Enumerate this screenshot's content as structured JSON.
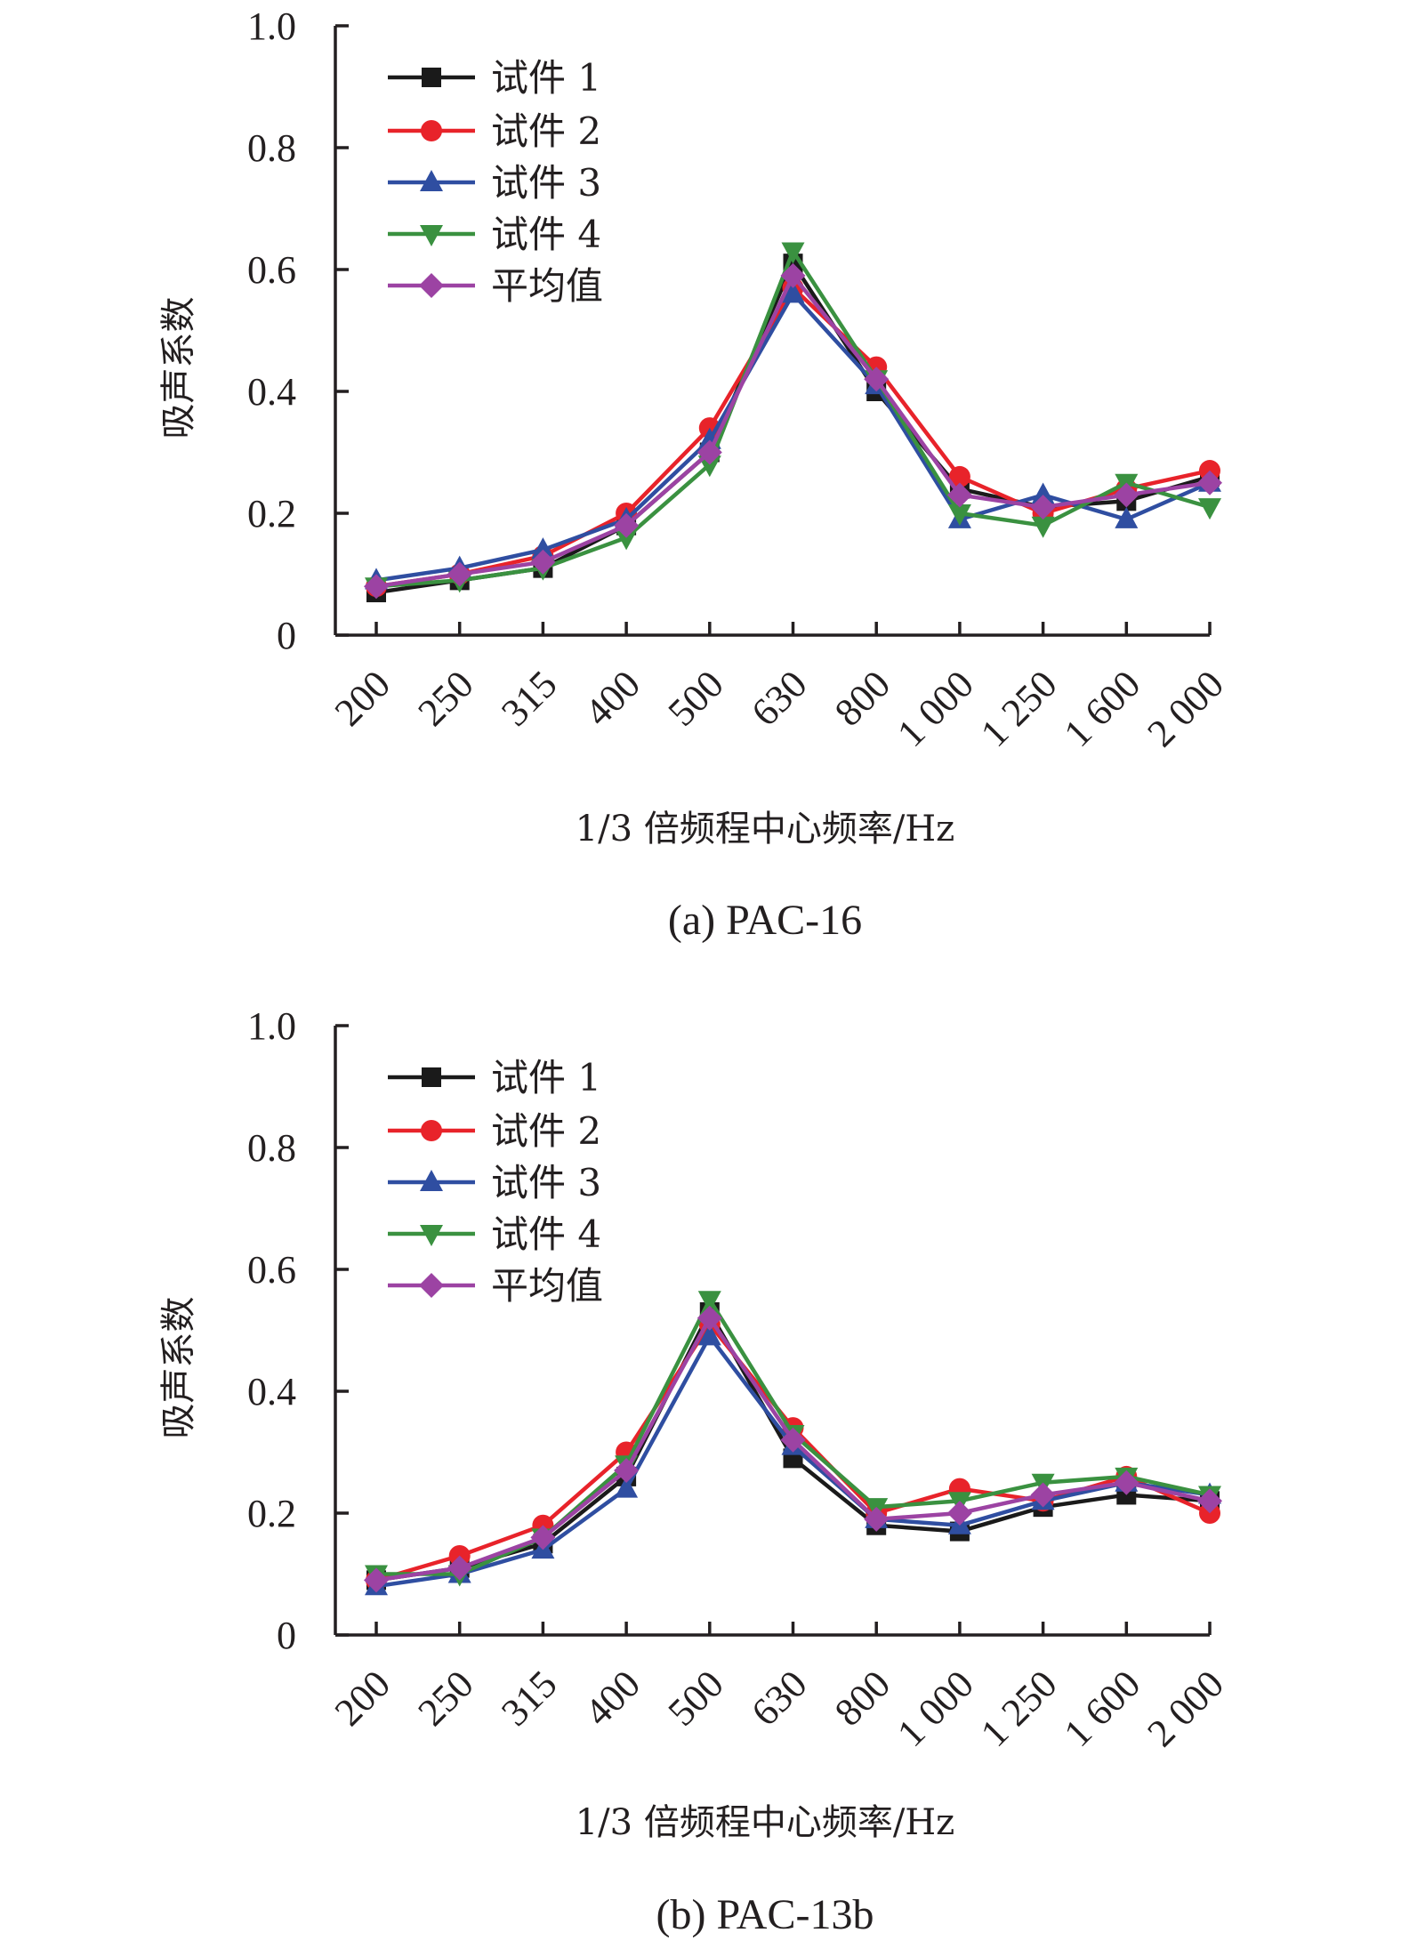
{
  "chart_data": [
    {
      "type": "line",
      "panel": "a",
      "title": "",
      "caption": "(a) PAC-16",
      "xlabel": "1/3 倍频程中心频率/Hz",
      "ylabel": "吸声系数",
      "categories": [
        "200",
        "250",
        "315",
        "400",
        "500",
        "630",
        "800",
        "1 000",
        "1 250",
        "1 600",
        "2 000"
      ],
      "ylim": [
        0,
        1.0
      ],
      "yticks": [
        "0",
        "0.2",
        "0.4",
        "0.6",
        "0.8",
        "1.0"
      ],
      "ytick_values": [
        0,
        0.2,
        0.4,
        0.6,
        0.8,
        1.0
      ],
      "grid": false,
      "legend_position": "top-left",
      "series": [
        {
          "name": "试件 1",
          "color": "#1a1a1a",
          "marker": "square",
          "values": [
            0.07,
            0.09,
            0.11,
            0.18,
            0.3,
            0.61,
            0.4,
            0.24,
            0.21,
            0.22,
            0.26
          ]
        },
        {
          "name": "试件 2",
          "color": "#e8232a",
          "marker": "circle",
          "values": [
            0.08,
            0.1,
            0.13,
            0.2,
            0.34,
            0.57,
            0.44,
            0.26,
            0.2,
            0.24,
            0.27
          ]
        },
        {
          "name": "试件 3",
          "color": "#2f4ea1",
          "marker": "triangle-up",
          "values": [
            0.09,
            0.11,
            0.14,
            0.19,
            0.32,
            0.56,
            0.41,
            0.19,
            0.23,
            0.19,
            0.25
          ]
        },
        {
          "name": "试件 4",
          "color": "#3a9140",
          "marker": "triangle-down",
          "values": [
            0.08,
            0.09,
            0.11,
            0.16,
            0.28,
            0.63,
            0.42,
            0.2,
            0.18,
            0.25,
            0.21
          ]
        },
        {
          "name": "平均值",
          "color": "#9c43a3",
          "marker": "diamond",
          "values": [
            0.08,
            0.1,
            0.12,
            0.18,
            0.3,
            0.59,
            0.42,
            0.23,
            0.21,
            0.23,
            0.25
          ]
        }
      ]
    },
    {
      "type": "line",
      "panel": "b",
      "title": "",
      "caption": "(b) PAC-13b",
      "xlabel": "1/3 倍频程中心频率/Hz",
      "ylabel": "吸声系数",
      "categories": [
        "200",
        "250",
        "315",
        "400",
        "500",
        "630",
        "800",
        "1 000",
        "1 250",
        "1 600",
        "2 000"
      ],
      "ylim": [
        0,
        1.0
      ],
      "yticks": [
        "0",
        "0.2",
        "0.4",
        "0.6",
        "0.8",
        "1.0"
      ],
      "ytick_values": [
        0,
        0.2,
        0.4,
        0.6,
        0.8,
        1.0
      ],
      "grid": false,
      "legend_position": "top-left",
      "series": [
        {
          "name": "试件 1",
          "color": "#1a1a1a",
          "marker": "square",
          "values": [
            0.09,
            0.11,
            0.15,
            0.26,
            0.53,
            0.29,
            0.18,
            0.17,
            0.21,
            0.23,
            0.22
          ]
        },
        {
          "name": "试件 2",
          "color": "#e8232a",
          "marker": "circle",
          "values": [
            0.09,
            0.13,
            0.18,
            0.3,
            0.51,
            0.34,
            0.2,
            0.24,
            0.22,
            0.26,
            0.2
          ]
        },
        {
          "name": "试件 3",
          "color": "#2f4ea1",
          "marker": "triangle-up",
          "values": [
            0.08,
            0.1,
            0.14,
            0.24,
            0.49,
            0.31,
            0.19,
            0.18,
            0.22,
            0.25,
            0.23
          ]
        },
        {
          "name": "试件 4",
          "color": "#3a9140",
          "marker": "triangle-down",
          "values": [
            0.1,
            0.1,
            0.16,
            0.28,
            0.55,
            0.33,
            0.21,
            0.22,
            0.25,
            0.26,
            0.23
          ]
        },
        {
          "name": "平均值",
          "color": "#9c43a3",
          "marker": "diamond",
          "values": [
            0.09,
            0.11,
            0.16,
            0.27,
            0.52,
            0.32,
            0.19,
            0.2,
            0.23,
            0.25,
            0.22
          ]
        }
      ]
    }
  ]
}
